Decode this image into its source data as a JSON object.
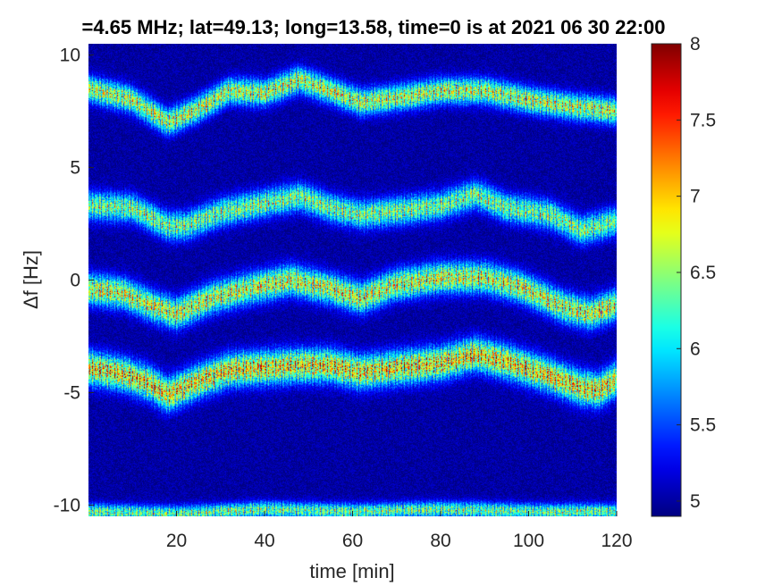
{
  "chart_data": {
    "type": "heatmap",
    "title": "=4.65 MHz;  lat=49.13; long=13.58, time=0 is at 2021 06 30 22:00",
    "xlabel": "time [min]",
    "ylabel": "Δf [Hz]",
    "xlim": [
      0,
      120
    ],
    "ylim": [
      -10.5,
      10.5
    ],
    "xticks": [
      20,
      40,
      60,
      80,
      100,
      120
    ],
    "yticks": [
      10,
      5,
      0,
      -5,
      -10
    ],
    "clim": [
      4.9,
      8
    ],
    "colorbar_ticks": [
      8,
      7.5,
      7,
      6.5,
      6,
      5.5,
      5
    ],
    "colormap": "jet",
    "background_level": 5,
    "bands": [
      {
        "points": [
          [
            0,
            8.5
          ],
          [
            10,
            8.0
          ],
          [
            18,
            7.0
          ],
          [
            25,
            7.6
          ],
          [
            32,
            8.4
          ],
          [
            40,
            8.3
          ],
          [
            48,
            8.9
          ],
          [
            55,
            8.4
          ],
          [
            62,
            7.9
          ],
          [
            70,
            8.1
          ],
          [
            80,
            8.4
          ],
          [
            90,
            8.4
          ],
          [
            100,
            8.0
          ],
          [
            110,
            7.7
          ],
          [
            120,
            7.5
          ]
        ],
        "peak": 7.3,
        "width": 0.55
      },
      {
        "points": [
          [
            0,
            3.3
          ],
          [
            10,
            3.2
          ],
          [
            18,
            2.4
          ],
          [
            22,
            2.4
          ],
          [
            30,
            3.0
          ],
          [
            40,
            3.4
          ],
          [
            48,
            3.7
          ],
          [
            55,
            3.2
          ],
          [
            62,
            2.9
          ],
          [
            72,
            3.1
          ],
          [
            80,
            3.3
          ],
          [
            88,
            3.8
          ],
          [
            95,
            3.2
          ],
          [
            105,
            2.9
          ],
          [
            112,
            2.2
          ],
          [
            120,
            2.6
          ]
        ],
        "peak": 7.0,
        "width": 0.6
      },
      {
        "points": [
          [
            0,
            -0.4
          ],
          [
            8,
            -0.6
          ],
          [
            15,
            -1.2
          ],
          [
            20,
            -1.5
          ],
          [
            28,
            -0.8
          ],
          [
            36,
            -0.4
          ],
          [
            46,
            0.0
          ],
          [
            55,
            -0.4
          ],
          [
            62,
            -0.8
          ],
          [
            70,
            -0.2
          ],
          [
            80,
            0.1
          ],
          [
            90,
            0.1
          ],
          [
            98,
            -0.3
          ],
          [
            108,
            -1.2
          ],
          [
            114,
            -1.5
          ],
          [
            120,
            -1.1
          ]
        ],
        "peak": 7.4,
        "width": 0.65
      },
      {
        "points": [
          [
            0,
            -3.9
          ],
          [
            8,
            -4.2
          ],
          [
            14,
            -4.6
          ],
          [
            18,
            -5.1
          ],
          [
            25,
            -4.5
          ],
          [
            32,
            -4.0
          ],
          [
            40,
            -3.9
          ],
          [
            48,
            -3.8
          ],
          [
            55,
            -3.8
          ],
          [
            62,
            -4.1
          ],
          [
            70,
            -3.9
          ],
          [
            80,
            -3.7
          ],
          [
            88,
            -3.3
          ],
          [
            96,
            -3.7
          ],
          [
            104,
            -4.2
          ],
          [
            112,
            -4.8
          ],
          [
            116,
            -4.9
          ],
          [
            120,
            -4.4
          ]
        ],
        "peak": 7.7,
        "width": 0.7
      },
      {
        "points": [
          [
            0,
            -10.3
          ],
          [
            20,
            -10.4
          ],
          [
            40,
            -10.2
          ],
          [
            60,
            -10.3
          ],
          [
            80,
            -10.2
          ],
          [
            100,
            -10.3
          ],
          [
            120,
            -10.3
          ]
        ],
        "peak": 6.9,
        "width": 0.35
      }
    ]
  }
}
